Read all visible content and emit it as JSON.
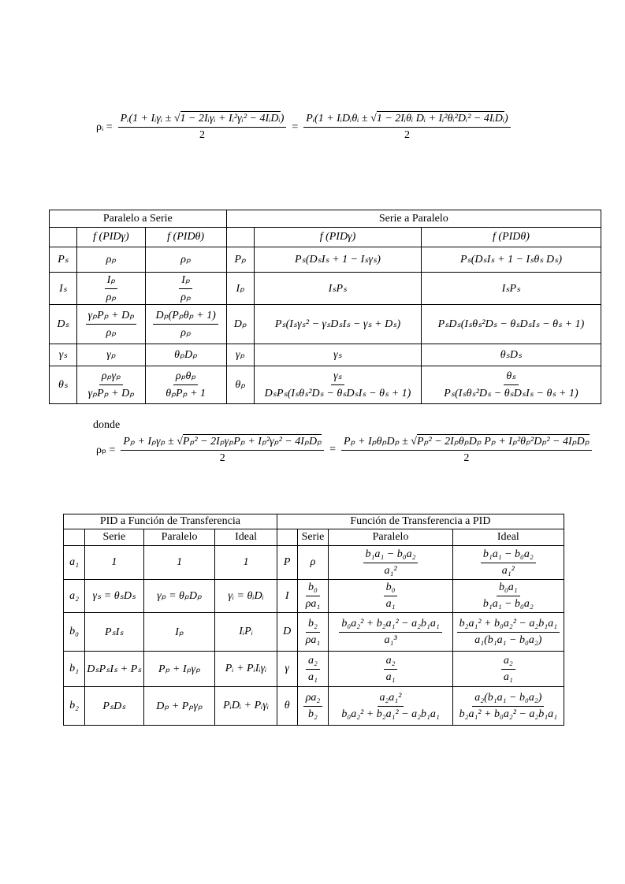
{
  "eq1": {
    "lhs": "ρᵢ =",
    "n1pre": "Pᵢ(1 + Iᵢγᵢ ± √",
    "n1rad": "1 − 2Iᵢγᵢ + Iᵢ²γᵢ² − 4IᵢDᵢ",
    "n1post": ")",
    "d1": "2",
    "eqsign": "=",
    "n2pre": "Pᵢ(1 + IᵢDᵢθᵢ ± √",
    "n2rad": "1 − 2Iᵢθᵢ Dᵢ + Iᵢ²θᵢ²Dᵢ² − 4IᵢDᵢ",
    "n2post": ")",
    "d2": "2"
  },
  "table1": {
    "group_left": "Paralelo a Serie",
    "group_right": "Serie a Paralelo",
    "headers": [
      "",
      "f (PIDγ)",
      "f (PIDθ)",
      "",
      "f (PIDγ)",
      "f (PIDθ)"
    ],
    "rows": [
      [
        "Pₛ",
        "ρₚ",
        "ρₚ",
        "Pₚ",
        "Pₛ(DₛIₛ + 1 − Iₛγₛ)",
        "Pₛ(DₛIₛ + 1 − Iₛθₛ Dₛ)"
      ],
      [
        "Iₛ",
        {
          "n": "Iₚ",
          "d": "ρₚ"
        },
        {
          "n": "Iₚ",
          "d": "ρₚ"
        },
        "Iₚ",
        "IₛPₛ",
        "IₛPₛ"
      ],
      [
        "Dₛ",
        {
          "n": "γₚPₚ + Dₚ",
          "d": "ρₚ"
        },
        {
          "n": "Dₚ(Pₚθₚ + 1)",
          "d": "ρₚ"
        },
        "Dₚ",
        "Pₛ(Iₛγₛ² − γₛDₛIₛ − γₛ + Dₛ)",
        "PₛDₛ(Iₛθₛ²Dₛ − θₛDₛIₛ − θₛ + 1)"
      ],
      [
        "γₛ",
        "γₚ",
        "θₚDₚ",
        "γₚ",
        "γₛ",
        "θₛDₛ"
      ],
      [
        "θₛ",
        {
          "n": "ρₚγₚ",
          "d": "γₚPₚ + Dₚ"
        },
        {
          "n": "ρₚθₚ",
          "d": "θₚPₚ + 1"
        },
        "θₚ",
        {
          "n": "γₛ",
          "d": "DₛPₛ(Iₛθₛ²Dₛ − θₛDₛIₛ − θₛ + 1)"
        },
        {
          "n": "θₛ",
          "d": "Pₛ(Iₛθₛ²Dₛ − θₛDₛIₛ − θₛ + 1)"
        }
      ]
    ]
  },
  "donde": "donde",
  "eq2": {
    "lhs": "ρₚ =",
    "n1pre": "Pₚ + Iₚγₚ ± √",
    "n1rad": "Pₚ² − 2IₚγₚPₚ + Iₚ²γₚ² − 4IₚDₚ",
    "n1post": "",
    "d1": "2",
    "eqsign": "=",
    "n2pre": "Pₚ + IₚθₚDₚ ± √",
    "n2rad": "Pₚ² − 2IₚθₚDₚ Pₚ + Iₚ²θₚ²Dₚ² − 4IₚDₚ",
    "n2post": "",
    "d2": "2"
  },
  "table2": {
    "group_left": "PID a Función de Transferencia",
    "group_right": "Función de Transferencia a PID",
    "headers": [
      "",
      "Serie",
      "Paralelo",
      "Ideal",
      "",
      "Serie",
      "Paralelo",
      "Ideal"
    ],
    "rows": [
      [
        "a₁",
        "1",
        "1",
        "1",
        "P",
        "ρ",
        {
          "n": "b₁a₁ − b₀a₂",
          "d": "a₁²"
        },
        {
          "n": "b₁a₁ − b₀a₂",
          "d": "a₁²"
        }
      ],
      [
        "a₂",
        "γₛ = θₛDₛ",
        "γₚ = θₚDₚ",
        "γᵢ = θᵢDᵢ",
        "I",
        {
          "n": "b₀",
          "d": "ρa₁"
        },
        {
          "n": "b₀",
          "d": "a₁"
        },
        {
          "n": "b₀a₁",
          "d": "b₁a₁ − b₀a₂"
        }
      ],
      [
        "b₀",
        "PₛIₛ",
        "Iₚ",
        "IᵢPᵢ",
        "D",
        {
          "n": "b₂",
          "d": "ρa₁"
        },
        {
          "n": "b₀a₂² + b₂a₁² − a₂b₁a₁",
          "d": "a₁³"
        },
        {
          "n": "b₂a₁² + b₀a₂² − a₂b₁a₁",
          "d": "a₁(b₁a₁ − b₀a₂)"
        }
      ],
      [
        "b₁",
        "DₛPₛIₛ + Pₛ",
        "Pₚ + Iₚγₚ",
        "Pᵢ + PᵢIᵢγᵢ",
        "γ",
        {
          "n": "a₂",
          "d": "a₁"
        },
        {
          "n": "a₂",
          "d": "a₁"
        },
        {
          "n": "a₂",
          "d": "a₁"
        }
      ],
      [
        "b₂",
        "PₛDₛ",
        "Dₚ + Pₚγₚ",
        "PᵢDᵢ + Pᵢγᵢ",
        "θ",
        {
          "n": "ρa₂",
          "d": "b₂"
        },
        {
          "n": "a₂a₁²",
          "d": "b₀a₂² + b₂a₁² − a₂b₁a₁"
        },
        {
          "n": "a₂(b₁a₁ − b₀a₂)",
          "d": "b₂a₁² + b₀a₂² − a₂b₁a₁"
        }
      ]
    ]
  }
}
